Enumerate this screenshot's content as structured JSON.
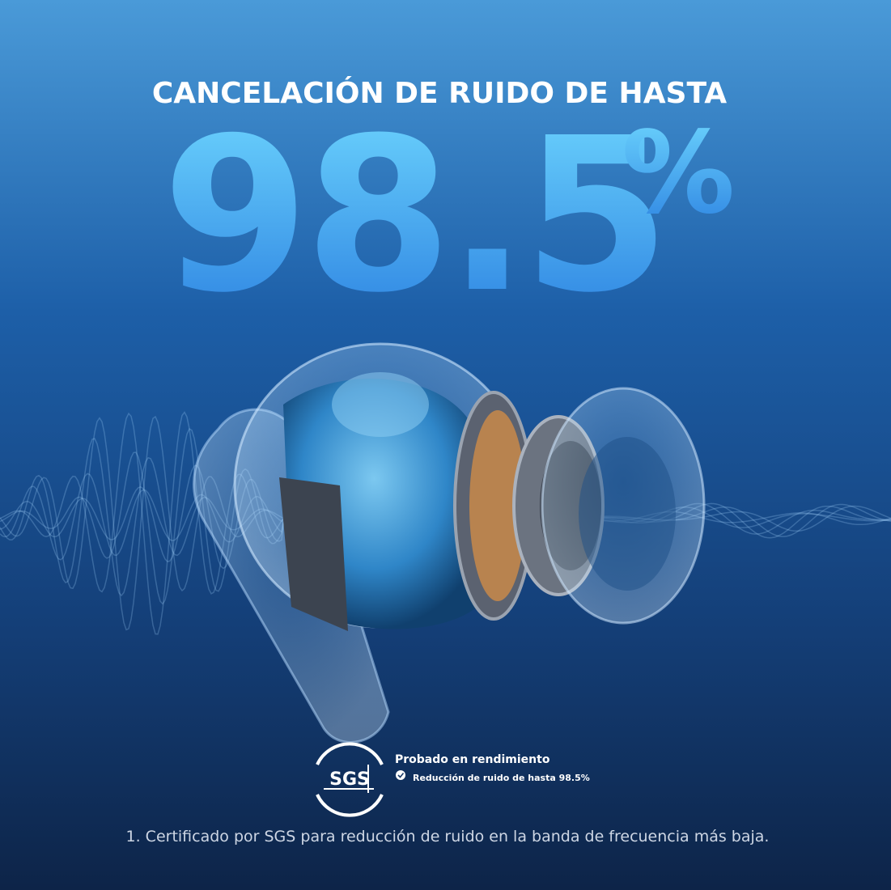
{
  "headline": "CANCELACIÓN DE RUIDO DE HASTA",
  "big_value": "98.5",
  "big_unit": "%",
  "badge": {
    "logo": "SGS",
    "title": "Probado en rendimiento",
    "check": "Reducción de ruido de hasta 98.5%"
  },
  "footnote": "1. Certificado por SGS para reducción de ruido en la banda de frecuencia más baja."
}
